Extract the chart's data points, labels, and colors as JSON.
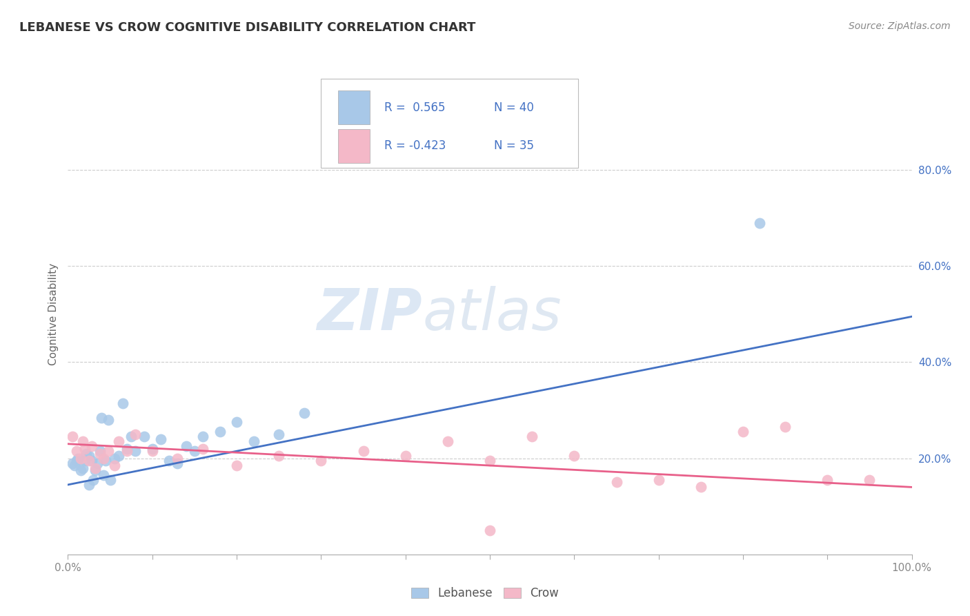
{
  "title": "LEBANESE VS CROW COGNITIVE DISABILITY CORRELATION CHART",
  "source": "Source: ZipAtlas.com",
  "ylabel": "Cognitive Disability",
  "xlim": [
    0.0,
    1.0
  ],
  "ylim": [
    0.0,
    1.0
  ],
  "x_ticks": [
    0.0,
    0.1,
    0.2,
    0.3,
    0.4,
    0.5,
    0.6,
    0.7,
    0.8,
    0.9,
    1.0
  ],
  "x_tick_labels_shown": {
    "0.0": "0.0%",
    "1.0": "100.0%"
  },
  "y_ticks": [
    0.2,
    0.4,
    0.6,
    0.8
  ],
  "y_tick_labels": [
    "20.0%",
    "40.0%",
    "60.0%",
    "80.0%"
  ],
  "legend_labels": [
    "Lebanese",
    "Crow"
  ],
  "legend_R1": "R =  0.565",
  "legend_N1": "N = 40",
  "legend_R2": "R = -0.423",
  "legend_N2": "N = 35",
  "blue_color": "#a8c8e8",
  "pink_color": "#f4b8c8",
  "blue_line_color": "#4472c4",
  "pink_line_color": "#e8608a",
  "watermark_zip": "ZIP",
  "watermark_atlas": "atlas",
  "title_color": "#333333",
  "background_color": "#ffffff",
  "legend_r_color": "#4472c4",
  "grid_color": "#cccccc",
  "tick_color": "#888888",
  "lebanese_x": [
    0.005,
    0.008,
    0.01,
    0.012,
    0.015,
    0.018,
    0.02,
    0.022,
    0.025,
    0.025,
    0.028,
    0.03,
    0.032,
    0.035,
    0.038,
    0.04,
    0.042,
    0.045,
    0.048,
    0.05,
    0.055,
    0.06,
    0.065,
    0.07,
    0.075,
    0.08,
    0.09,
    0.1,
    0.11,
    0.12,
    0.13,
    0.14,
    0.15,
    0.16,
    0.18,
    0.2,
    0.22,
    0.25,
    0.28,
    0.82
  ],
  "lebanese_y": [
    0.19,
    0.185,
    0.195,
    0.2,
    0.175,
    0.18,
    0.195,
    0.21,
    0.145,
    0.205,
    0.195,
    0.155,
    0.175,
    0.19,
    0.215,
    0.285,
    0.165,
    0.195,
    0.28,
    0.155,
    0.2,
    0.205,
    0.315,
    0.22,
    0.245,
    0.215,
    0.245,
    0.22,
    0.24,
    0.195,
    0.19,
    0.225,
    0.215,
    0.245,
    0.255,
    0.275,
    0.235,
    0.25,
    0.295,
    0.69
  ],
  "crow_x": [
    0.005,
    0.01,
    0.015,
    0.018,
    0.02,
    0.025,
    0.028,
    0.032,
    0.038,
    0.042,
    0.048,
    0.055,
    0.06,
    0.07,
    0.08,
    0.1,
    0.13,
    0.16,
    0.2,
    0.25,
    0.3,
    0.35,
    0.4,
    0.45,
    0.5,
    0.55,
    0.6,
    0.65,
    0.7,
    0.75,
    0.8,
    0.85,
    0.9,
    0.95,
    0.5
  ],
  "crow_y": [
    0.245,
    0.215,
    0.2,
    0.235,
    0.22,
    0.195,
    0.225,
    0.18,
    0.21,
    0.2,
    0.215,
    0.185,
    0.235,
    0.215,
    0.25,
    0.215,
    0.2,
    0.22,
    0.185,
    0.205,
    0.195,
    0.215,
    0.205,
    0.235,
    0.195,
    0.245,
    0.205,
    0.15,
    0.155,
    0.14,
    0.255,
    0.265,
    0.155,
    0.155,
    0.05
  ],
  "blue_line_x0": 0.0,
  "blue_line_x1": 1.0,
  "blue_line_y0": 0.145,
  "blue_line_y1": 0.495,
  "pink_line_x0": 0.0,
  "pink_line_x1": 1.0,
  "pink_line_y0": 0.23,
  "pink_line_y1": 0.14
}
